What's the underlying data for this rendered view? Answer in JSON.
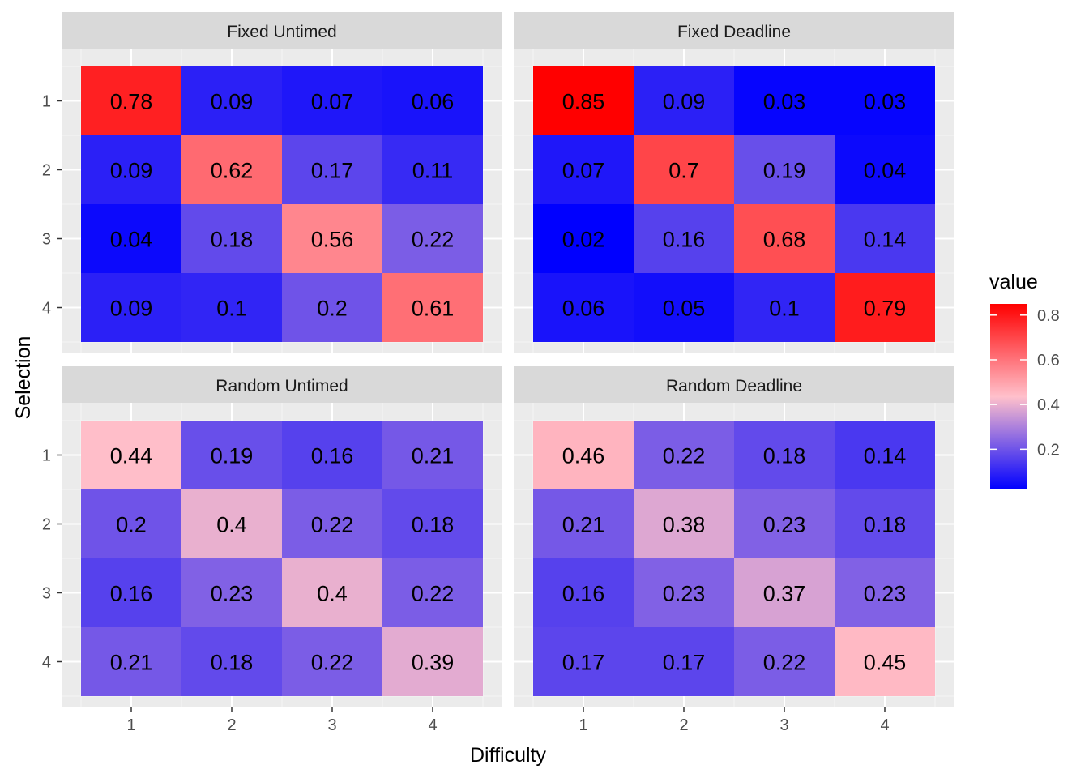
{
  "chart_data": {
    "type": "heatmap",
    "xlabel": "Difficulty",
    "ylabel": "Selection",
    "x_categories": [
      "1",
      "2",
      "3",
      "4"
    ],
    "y_categories": [
      "1",
      "2",
      "3",
      "4"
    ],
    "legend": {
      "title": "value",
      "ticks": [
        0.2,
        0.4,
        0.6,
        0.8
      ],
      "tick_labels": [
        "0.2",
        "0.4",
        "0.6",
        "0.8"
      ],
      "range": [
        0.02,
        0.85
      ],
      "placement": "right"
    },
    "colors": {
      "low": "#0000FF",
      "mid": "#FFC0CB",
      "high": "#FF0000",
      "midpoint": 0.435
    },
    "panels": [
      {
        "title": "Fixed Untimed",
        "values": [
          [
            0.78,
            0.09,
            0.07,
            0.06
          ],
          [
            0.09,
            0.62,
            0.17,
            0.11
          ],
          [
            0.04,
            0.18,
            0.56,
            0.22
          ],
          [
            0.09,
            0.1,
            0.2,
            0.61
          ]
        ],
        "labels": [
          [
            "0.78",
            "0.09",
            "0.07",
            "0.06"
          ],
          [
            "0.09",
            "0.62",
            "0.17",
            "0.11"
          ],
          [
            "0.04",
            "0.18",
            "0.56",
            "0.22"
          ],
          [
            "0.09",
            "0.1",
            "0.2",
            "0.61"
          ]
        ]
      },
      {
        "title": "Fixed Deadline",
        "values": [
          [
            0.85,
            0.09,
            0.03,
            0.03
          ],
          [
            0.07,
            0.7,
            0.19,
            0.04
          ],
          [
            0.02,
            0.16,
            0.68,
            0.14
          ],
          [
            0.06,
            0.05,
            0.1,
            0.79
          ]
        ],
        "labels": [
          [
            "0.85",
            "0.09",
            "0.03",
            "0.03"
          ],
          [
            "0.07",
            "0.7",
            "0.19",
            "0.04"
          ],
          [
            "0.02",
            "0.16",
            "0.68",
            "0.14"
          ],
          [
            "0.06",
            "0.05",
            "0.1",
            "0.79"
          ]
        ]
      },
      {
        "title": "Random Untimed",
        "values": [
          [
            0.44,
            0.19,
            0.16,
            0.21
          ],
          [
            0.2,
            0.4,
            0.22,
            0.18
          ],
          [
            0.16,
            0.23,
            0.4,
            0.22
          ],
          [
            0.21,
            0.18,
            0.22,
            0.39
          ]
        ],
        "labels": [
          [
            "0.44",
            "0.19",
            "0.16",
            "0.21"
          ],
          [
            "0.2",
            "0.4",
            "0.22",
            "0.18"
          ],
          [
            "0.16",
            "0.23",
            "0.4",
            "0.22"
          ],
          [
            "0.21",
            "0.18",
            "0.22",
            "0.39"
          ]
        ]
      },
      {
        "title": "Random Deadline",
        "values": [
          [
            0.46,
            0.22,
            0.18,
            0.14
          ],
          [
            0.21,
            0.38,
            0.23,
            0.18
          ],
          [
            0.16,
            0.23,
            0.37,
            0.23
          ],
          [
            0.17,
            0.17,
            0.22,
            0.45
          ]
        ],
        "labels": [
          [
            "0.46",
            "0.22",
            "0.18",
            "0.14"
          ],
          [
            "0.21",
            "0.38",
            "0.23",
            "0.18"
          ],
          [
            "0.16",
            "0.23",
            "0.37",
            "0.23"
          ],
          [
            "0.17",
            "0.17",
            "0.22",
            "0.45"
          ]
        ]
      }
    ]
  }
}
